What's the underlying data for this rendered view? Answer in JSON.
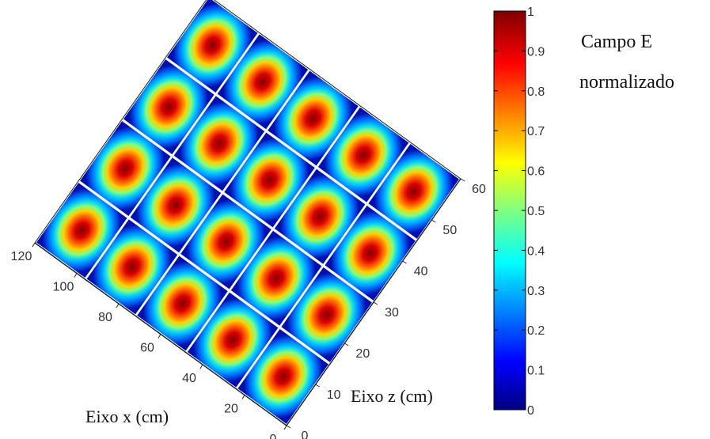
{
  "chart_data": {
    "type": "heatmap",
    "title": "",
    "xlabel": "Eixo x (cm)",
    "zlabel": "Eixo z (cm)",
    "x_range": [
      0,
      120
    ],
    "z_range": [
      0,
      60
    ],
    "x_ticks": [
      0,
      20,
      40,
      60,
      80,
      100,
      120
    ],
    "z_ticks": [
      0,
      10,
      20,
      30,
      40,
      50,
      60
    ],
    "grid_cells": {
      "along_x": 5,
      "along_z": 4
    },
    "field_peaks": [
      [
        1,
        1,
        1,
        1
      ],
      [
        1,
        1,
        1,
        1
      ],
      [
        1,
        1,
        1,
        1
      ],
      [
        1,
        1,
        1,
        1
      ],
      [
        1,
        1,
        1,
        1
      ]
    ],
    "colormap": "jet",
    "colorbar": {
      "title_line1": "Campo E",
      "title_line2": "normalizado",
      "ticks": [
        0,
        0.1,
        0.2,
        0.3,
        0.4,
        0.5,
        0.6,
        0.7,
        0.8,
        0.9,
        1
      ],
      "range": [
        0,
        1
      ],
      "position": "right"
    },
    "grid": false,
    "legend": "none"
  }
}
